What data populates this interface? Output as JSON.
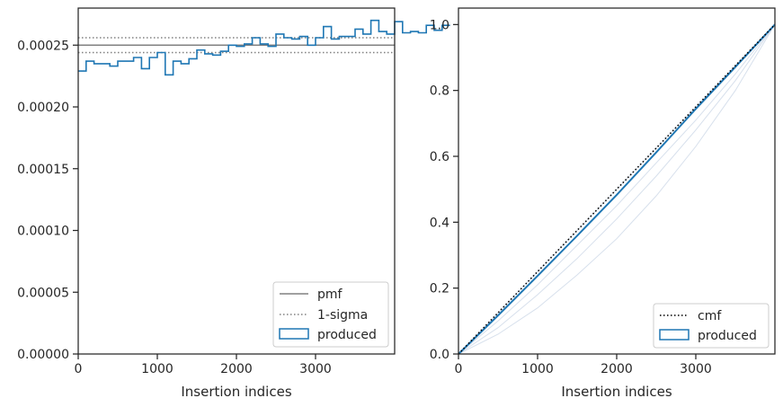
{
  "colors": {
    "produced": "#1f77b4",
    "pmf": "#808080",
    "cmf": "#000000",
    "axes": "#262626",
    "faint": "#c6d3e4"
  },
  "chart_data": [
    {
      "type": "step",
      "xlabel": "Insertion indices",
      "ylabel": "",
      "xlim": [
        0,
        4000
      ],
      "ylim": [
        0,
        0.00028
      ],
      "x_ticks": [
        "0",
        "1000",
        "2000",
        "3000"
      ],
      "x_tick_values": [
        0,
        1000,
        2000,
        3000
      ],
      "y_ticks": [
        "0.00000",
        "0.00005",
        "0.00010",
        "0.00015",
        "0.00020",
        "0.00025"
      ],
      "y_tick_values": [
        0,
        5e-05,
        0.0001,
        0.00015,
        0.0002,
        0.00025
      ],
      "grid": false,
      "legend_position": "lower right",
      "pmf": 0.00025,
      "sigma_band": [
        0.000244,
        0.000256
      ],
      "bin_width": 100,
      "produced": [
        0.000229,
        0.000237,
        0.000235,
        0.000235,
        0.000233,
        0.000237,
        0.000237,
        0.00024,
        0.000231,
        0.00024,
        0.000244,
        0.000226,
        0.000237,
        0.000235,
        0.000239,
        0.000246,
        0.000243,
        0.000242,
        0.000245,
        0.00025,
        0.000249,
        0.000251,
        0.000256,
        0.000251,
        0.000249,
        0.000259,
        0.000256,
        0.000255,
        0.000257,
        0.00025,
        0.000256,
        0.000265,
        0.000255,
        0.000257,
        0.000257,
        0.000263,
        0.000259,
        0.00027,
        0.000261,
        0.000259,
        0.000269,
        0.00026,
        0.000261,
        0.00026,
        0.000266,
        0.000262,
        0.000266
      ],
      "legend": [
        {
          "label": "pmf",
          "style": "solid-gray"
        },
        {
          "label": "1-sigma",
          "style": "dotted-gray"
        },
        {
          "label": "produced",
          "style": "box-blue"
        }
      ]
    },
    {
      "type": "line",
      "xlabel": "Insertion indices",
      "ylabel": "",
      "xlim": [
        0,
        4000
      ],
      "ylim": [
        0,
        1.05
      ],
      "x_ticks": [
        "0",
        "1000",
        "2000",
        "3000"
      ],
      "x_tick_values": [
        0,
        1000,
        2000,
        3000
      ],
      "y_ticks": [
        "0.0",
        "0.2",
        "0.4",
        "0.6",
        "0.8",
        "1.0"
      ],
      "y_tick_values": [
        0,
        0.2,
        0.4,
        0.6,
        0.8,
        1.0
      ],
      "grid": false,
      "legend_position": "lower right",
      "cmf": {
        "x": [
          0,
          4000
        ],
        "y": [
          0,
          1
        ]
      },
      "produced": {
        "x": [
          0,
          500,
          1000,
          1500,
          2000,
          2500,
          3000,
          3500,
          4000
        ],
        "y": [
          0,
          0.117,
          0.237,
          0.359,
          0.483,
          0.612,
          0.744,
          0.871,
          1.0
        ]
      },
      "faint_curves": [
        {
          "x": [
            0,
            500,
            1000,
            1500,
            2000,
            2500,
            3000,
            3500,
            4000
          ],
          "y": [
            0,
            0.08,
            0.18,
            0.29,
            0.41,
            0.54,
            0.68,
            0.83,
            1.0
          ]
        },
        {
          "x": [
            0,
            500,
            1000,
            1500,
            2000,
            2500,
            3000,
            3500,
            4000
          ],
          "y": [
            0,
            0.06,
            0.14,
            0.24,
            0.35,
            0.48,
            0.63,
            0.8,
            1.0
          ]
        },
        {
          "x": [
            0,
            500,
            1000,
            1500,
            2000,
            2500,
            3000,
            3500,
            4000
          ],
          "y": [
            0,
            0.1,
            0.21,
            0.33,
            0.45,
            0.58,
            0.71,
            0.85,
            1.0
          ]
        },
        {
          "x": [
            0,
            500,
            1000,
            1500,
            2000,
            2500,
            3000,
            3500,
            4000
          ],
          "y": [
            0,
            0.125,
            0.25,
            0.375,
            0.5,
            0.625,
            0.75,
            0.875,
            1.0
          ]
        }
      ],
      "legend": [
        {
          "label": "cmf",
          "style": "dotted-black"
        },
        {
          "label": "produced",
          "style": "box-blue"
        }
      ]
    }
  ]
}
